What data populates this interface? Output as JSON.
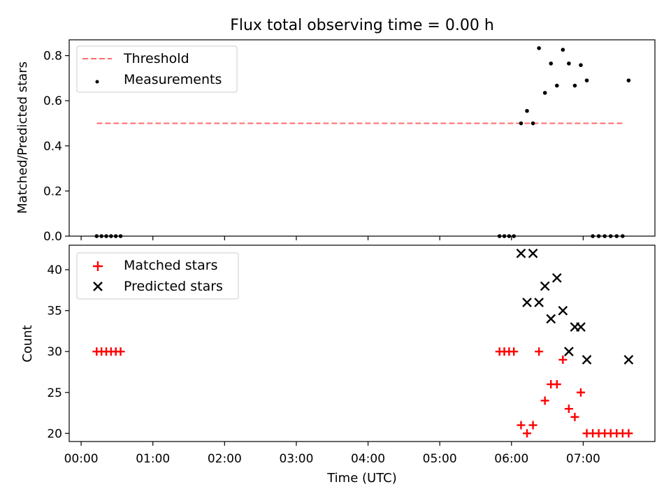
{
  "figure_title": "Flux total observing time = 0.00 h",
  "colors": {
    "threshold": "#ff6b6b",
    "measurements": "#000000",
    "matched": "#ff0000",
    "predicted": "#000000",
    "axis": "#000000"
  },
  "chart_data": [
    {
      "type": "scatter",
      "title": "Flux total observing time = 0.00 h",
      "xlabel": "",
      "ylabel": "Matched/Predicted stars",
      "xlim": [
        "23:50",
        "08:00"
      ],
      "ylim": [
        0,
        0.87
      ],
      "yticks": [
        "0.0",
        "0.2",
        "0.4",
        "0.6",
        "0.8"
      ],
      "ytick_values": [
        0,
        0.2,
        0.4,
        0.6,
        0.8
      ],
      "legend": {
        "position": "top-left",
        "entries": [
          "Threshold",
          "Measurements"
        ]
      },
      "series": [
        {
          "name": "Threshold",
          "style": "dashed-line",
          "x": [
            "00:13",
            "07:35"
          ],
          "y": [
            0.5,
            0.5
          ]
        },
        {
          "name": "Measurements",
          "style": "dot",
          "x": [
            "00:13",
            "00:17",
            "00:21",
            "00:25",
            "00:29",
            "00:33",
            "05:50",
            "05:54",
            "05:58",
            "06:02",
            "06:08",
            "06:13",
            "06:18",
            "06:23",
            "06:28",
            "06:33",
            "06:38",
            "06:43",
            "06:48",
            "06:53",
            "06:58",
            "07:03",
            "07:08",
            "07:13",
            "07:18",
            "07:23",
            "07:28",
            "07:33",
            "07:38"
          ],
          "y": [
            0,
            0,
            0,
            0,
            0,
            0,
            0,
            0,
            0,
            0,
            0.5,
            0.555,
            0.5,
            0.833,
            0.635,
            0.765,
            0.667,
            0.826,
            0.765,
            0.667,
            0.758,
            0.69,
            0,
            0,
            0,
            0,
            0,
            0,
            0.69
          ]
        }
      ]
    },
    {
      "type": "scatter",
      "title": "",
      "xlabel": "Time (UTC)",
      "ylabel": "Count",
      "xlim": [
        "23:50",
        "08:00"
      ],
      "ylim": [
        19,
        43
      ],
      "yticks": [
        "20",
        "25",
        "30",
        "35",
        "40"
      ],
      "ytick_values": [
        20,
        25,
        30,
        35,
        40
      ],
      "xticks": [
        "00:00",
        "01:00",
        "02:00",
        "03:00",
        "04:00",
        "05:00",
        "06:00",
        "07:00"
      ],
      "legend": {
        "position": "top-left",
        "entries": [
          "Matched stars",
          "Predicted stars"
        ]
      },
      "series": [
        {
          "name": "Matched stars",
          "style": "plus",
          "x": [
            "00:13",
            "00:17",
            "00:21",
            "00:25",
            "00:29",
            "00:33",
            "05:50",
            "05:54",
            "05:58",
            "06:02",
            "06:08",
            "06:13",
            "06:18",
            "06:23",
            "06:28",
            "06:33",
            "06:38",
            "06:43",
            "06:48",
            "06:53",
            "06:58",
            "07:03",
            "07:08",
            "07:13",
            "07:18",
            "07:23",
            "07:28",
            "07:33",
            "07:38"
          ],
          "y": [
            30,
            30,
            30,
            30,
            30,
            30,
            30,
            30,
            30,
            30,
            21,
            20,
            21,
            30,
            24,
            26,
            26,
            29,
            23,
            22,
            25,
            20,
            20,
            20,
            20,
            20,
            20,
            20,
            20
          ]
        },
        {
          "name": "Predicted stars",
          "style": "x",
          "x": [
            "06:08",
            "06:13",
            "06:18",
            "06:23",
            "06:28",
            "06:33",
            "06:38",
            "06:43",
            "06:48",
            "06:53",
            "06:58",
            "07:03",
            "07:38"
          ],
          "y": [
            42,
            36,
            42,
            36,
            38,
            34,
            39,
            35,
            30,
            33,
            33,
            29,
            29
          ]
        }
      ]
    }
  ]
}
